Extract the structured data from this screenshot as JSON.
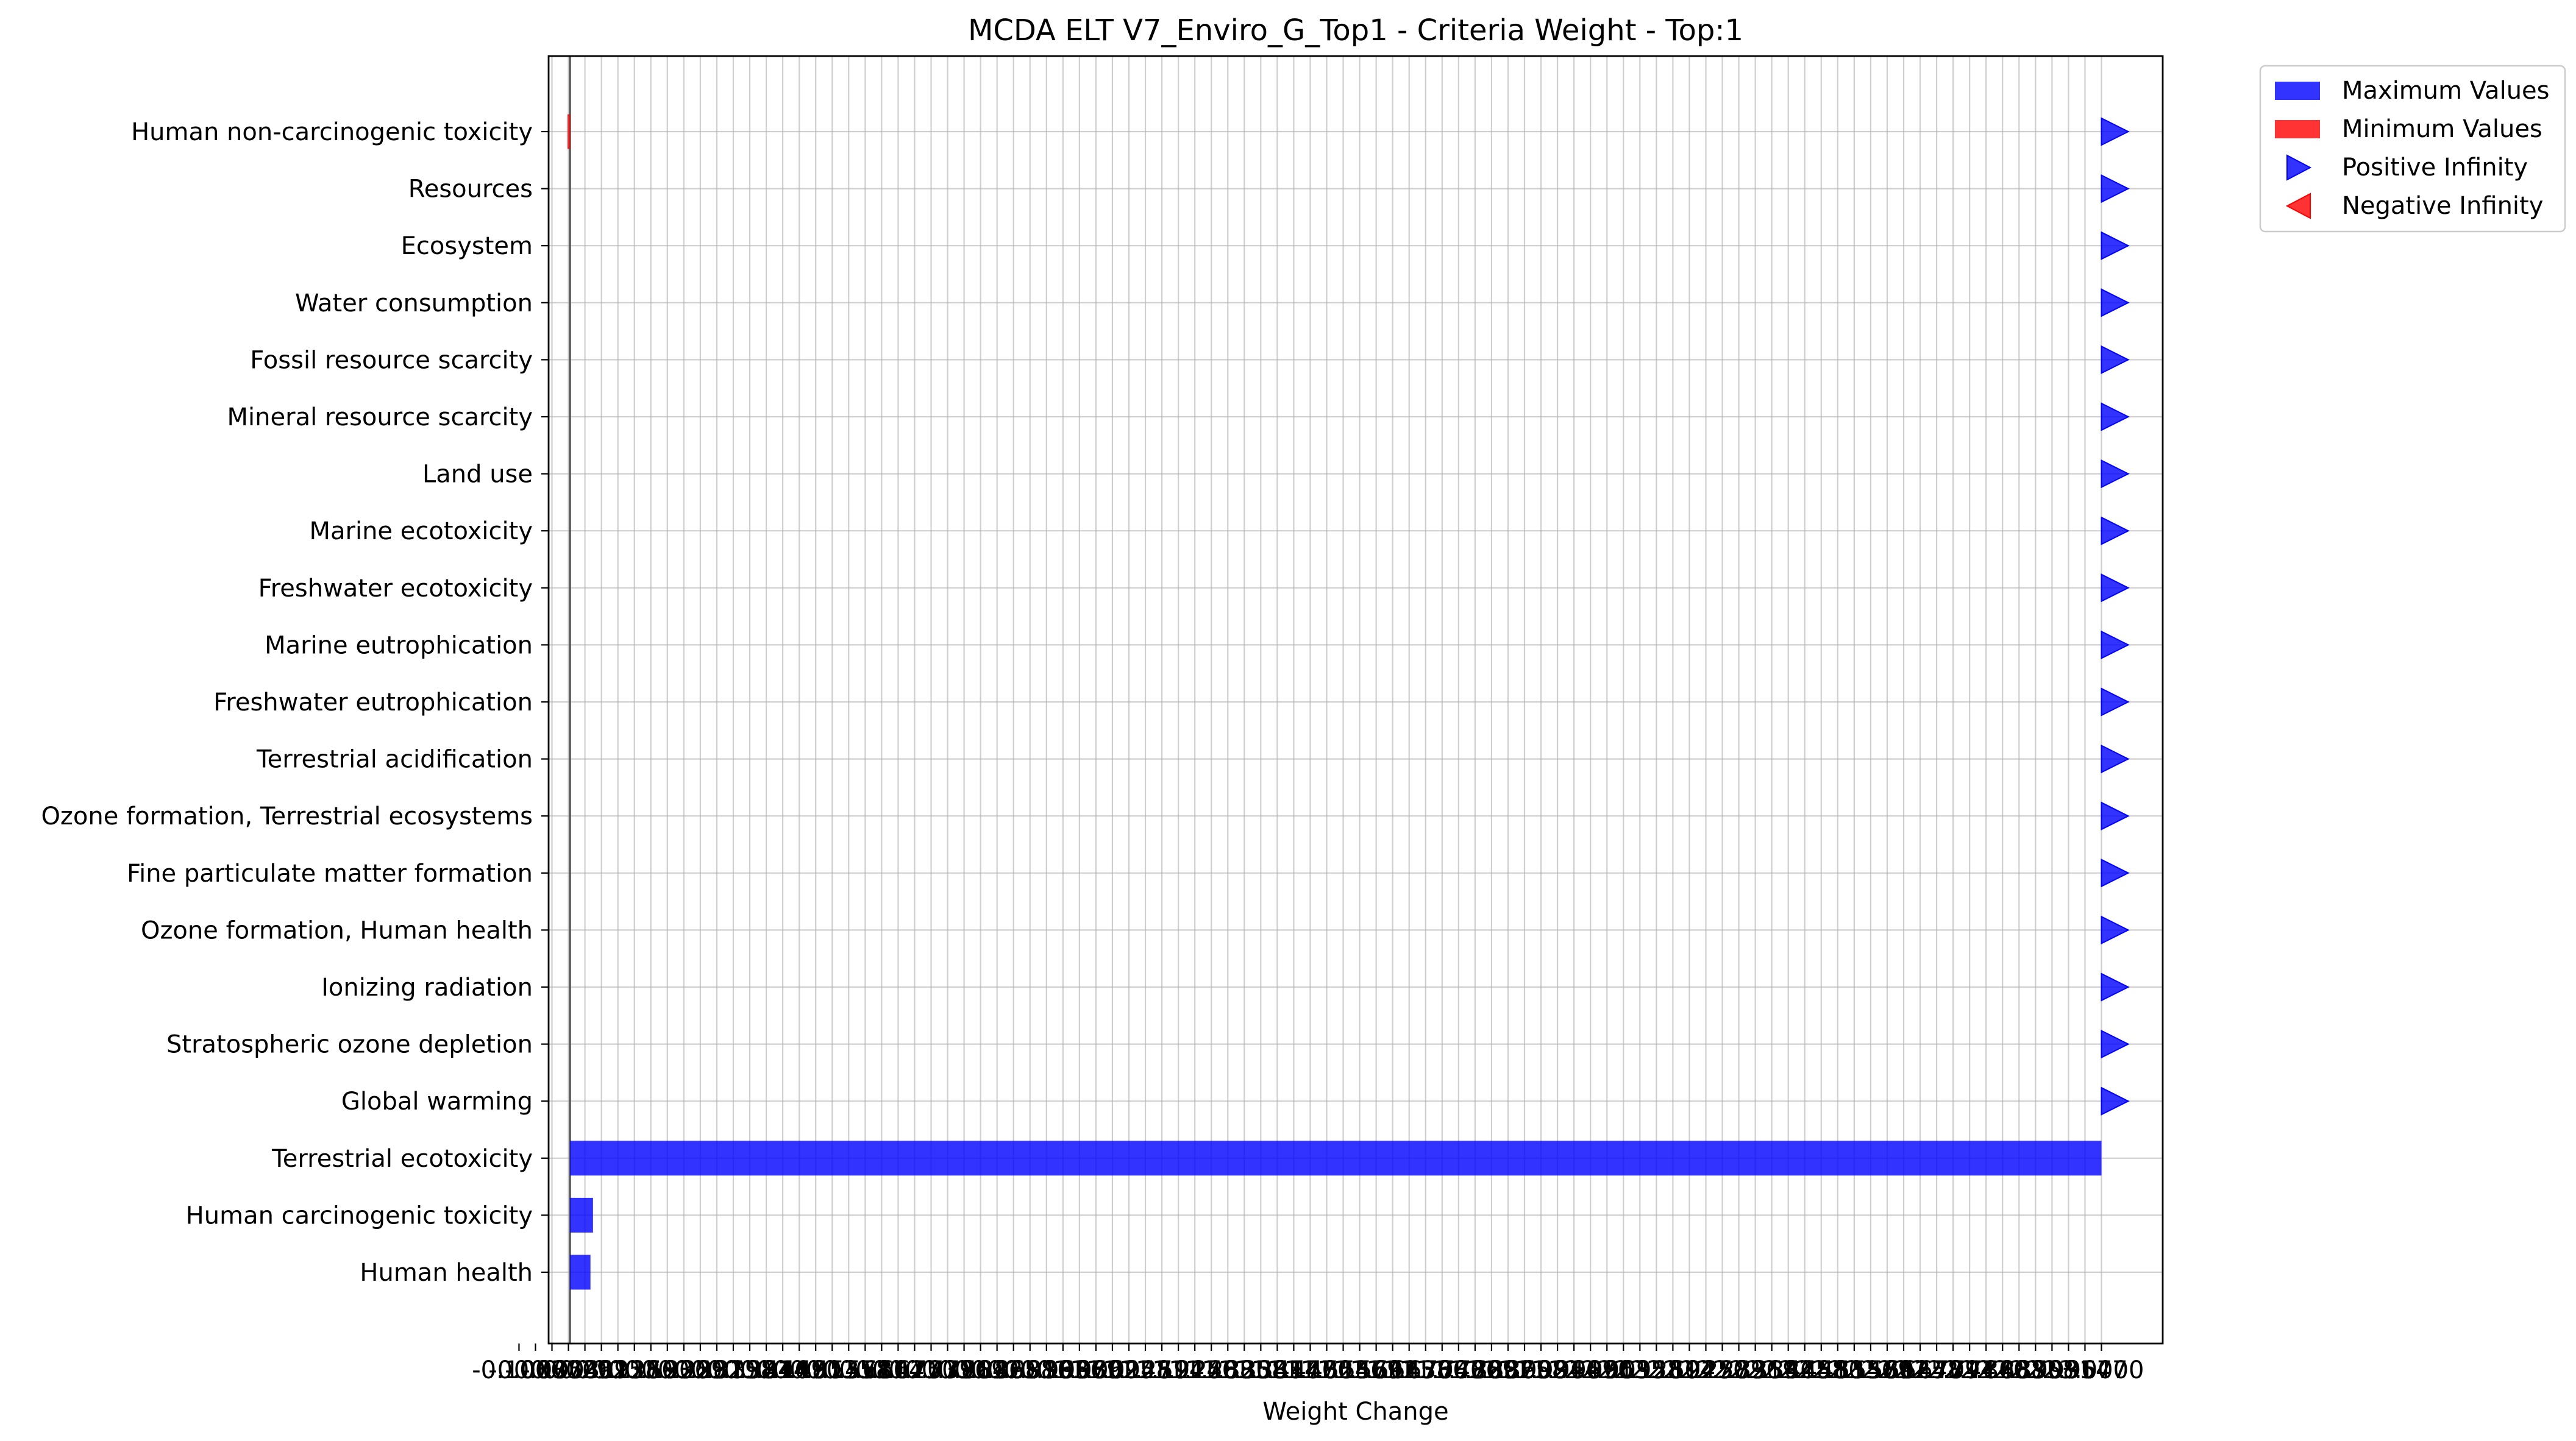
{
  "chart_data": {
    "type": "bar",
    "orientation": "horizontal",
    "title": "MCDA ELT V7_Enviro_G_Top1 - Criteria Weight - Top:1",
    "xlabel": "Weight Change",
    "ylabel": "",
    "xlim": [
      -0.042,
      3.12
    ],
    "x_ticks_count": 97,
    "x_tick_labels_note": "Tick labels overlap into an illegible strip; only the ends read clearly",
    "x_tick_first_label": "-0.1000",
    "x_tick_last_label": "3.0000",
    "grid": true,
    "legend_position": "upper right outside plot",
    "categories": [
      "Human non-carcinogenic toxicity",
      "Resources",
      "Ecosystem",
      "Water consumption",
      "Fossil resource scarcity",
      "Mineral resource scarcity",
      "Land use",
      "Marine ecotoxicity",
      "Freshwater ecotoxicity",
      "Marine eutrophication",
      "Freshwater eutrophication",
      "Terrestrial acidification",
      "Ozone formation, Terrestrial ecosystems",
      "Fine particulate matter formation",
      "Ozone formation, Human health",
      "Ionizing radiation",
      "Stratospheric ozone depletion",
      "Global warming",
      "Terrestrial ecotoxicity",
      "Human carcinogenic toxicity",
      "Human health"
    ],
    "series": [
      {
        "name": "Maximum Values",
        "color": "#0000ff",
        "values": [
          null,
          null,
          null,
          null,
          null,
          null,
          null,
          null,
          null,
          null,
          null,
          null,
          null,
          null,
          null,
          null,
          null,
          null,
          3.0,
          0.045,
          0.04
        ]
      },
      {
        "name": "Minimum Values",
        "color": "#ff0000",
        "values": [
          -0.005,
          null,
          null,
          null,
          null,
          null,
          null,
          null,
          null,
          null,
          null,
          null,
          null,
          null,
          null,
          null,
          null,
          null,
          null,
          null,
          null
        ]
      }
    ],
    "markers": [
      {
        "name": "Positive Infinity",
        "symbol": "triangle-right",
        "color": "#0000ff",
        "x": 3.0,
        "categories": [
          "Human non-carcinogenic toxicity",
          "Resources",
          "Ecosystem",
          "Water consumption",
          "Fossil resource scarcity",
          "Mineral resource scarcity",
          "Land use",
          "Marine ecotoxicity",
          "Freshwater ecotoxicity",
          "Marine eutrophication",
          "Freshwater eutrophication",
          "Terrestrial acidification",
          "Ozone formation, Terrestrial ecosystems",
          "Fine particulate matter formation",
          "Ozone formation, Human health",
          "Ionizing radiation",
          "Stratospheric ozone depletion",
          "Global warming"
        ]
      },
      {
        "name": "Negative Infinity",
        "symbol": "triangle-left",
        "color": "#ff0000",
        "x": null,
        "categories": []
      }
    ]
  }
}
